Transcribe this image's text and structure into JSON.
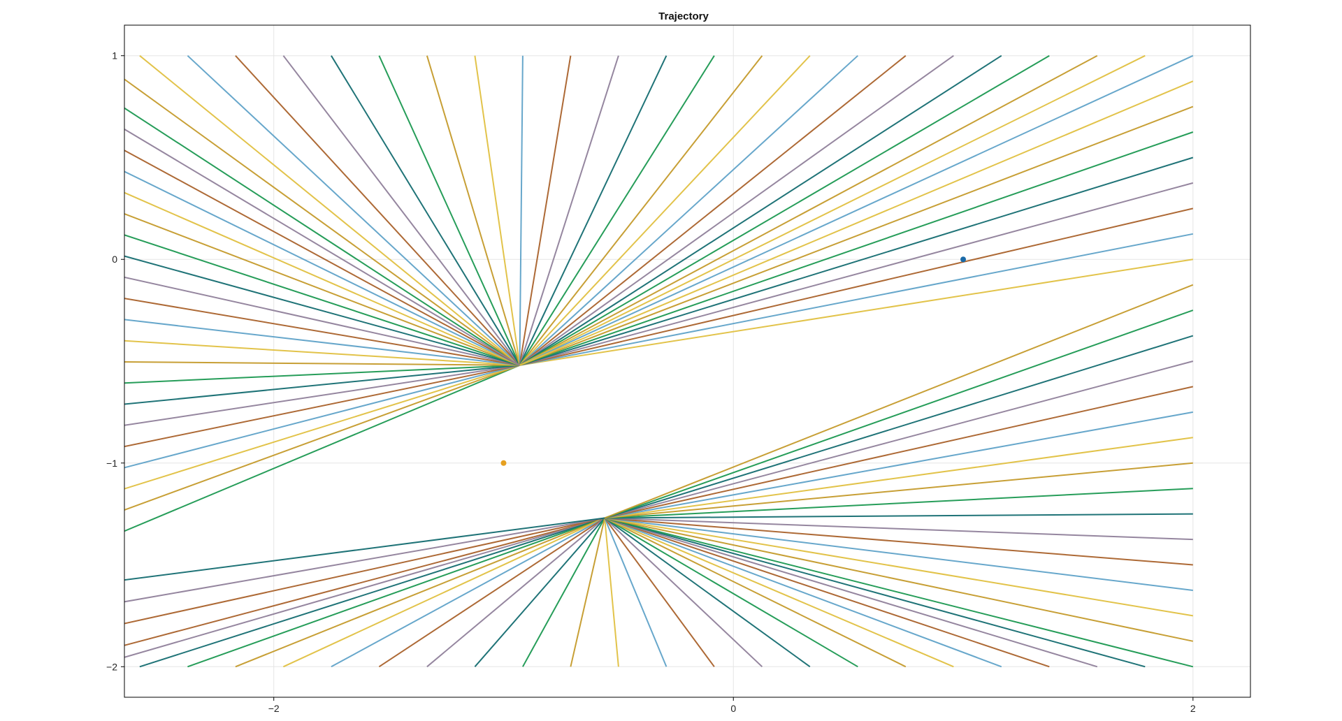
{
  "chart_data": {
    "type": "line",
    "title": "Trajectory",
    "xlabel": "",
    "ylabel": "",
    "xlim": [
      -2.65,
      2.25
    ],
    "ylim": [
      -2.15,
      1.15
    ],
    "xticks": [
      -2,
      0,
      2
    ],
    "yticks": [
      1,
      0,
      -1,
      -2
    ],
    "xtick_labels": [
      "−2",
      "0",
      "2"
    ],
    "ytick_labels": [
      "1",
      "0",
      "−1",
      "−2"
    ],
    "grid": true,
    "legend": "none",
    "palette": [
      "#1a9850",
      "#a9612a",
      "#c49a2a",
      "#8f7f9a",
      "#e0c040",
      "#136b70",
      "#5fa2c8"
    ],
    "convergence_points": [
      {
        "x": -0.93,
        "y": -0.52
      },
      {
        "x": -0.56,
        "y": -1.27
      }
    ],
    "markers": [
      {
        "x": 1.0,
        "y": 0.0,
        "color": "#1a6aa8"
      },
      {
        "x": -1.0,
        "y": -1.0,
        "color": "#e6a020"
      }
    ],
    "boundary": {
      "x_min": -3.0,
      "x_max": 2.0,
      "y_min": -2.0,
      "y_max": 1.0,
      "steps": 24
    }
  }
}
